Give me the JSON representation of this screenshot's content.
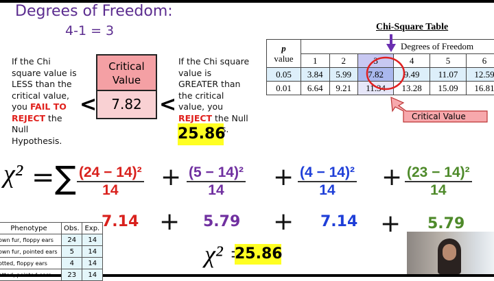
{
  "title": "Degrees of Freedom:",
  "df_calc": "4-1 = 3",
  "critical_box": {
    "label": "Critical Value",
    "value": "7.82"
  },
  "left_note": {
    "pre": "If the Chi square value is LESS than the critical value, you ",
    "emph": "FAIL TO REJECT",
    "post": " the Null Hypothesis."
  },
  "right_note": {
    "pre": "If the Chi square value is GREATER than the critical value, you ",
    "emph": "REJECT",
    "post": " the Null Hypothesis."
  },
  "less_than": "<",
  "chi_value": "25.86",
  "chi_table": {
    "title": "Chi-Square Table",
    "p_header": "p",
    "p_header2": "value",
    "df_header": "Degrees of Freedom",
    "df": [
      "1",
      "2",
      "3",
      "4",
      "5",
      "6"
    ],
    "rows": [
      {
        "p": "0.05",
        "values": [
          "3.84",
          "5.99",
          "7.82",
          "9.49",
          "11.07",
          "12.59"
        ]
      },
      {
        "p": "0.01",
        "values": [
          "6.64",
          "9.21",
          "11.34",
          "13.28",
          "15.09",
          "16.81"
        ]
      }
    ],
    "callout": "Critical Value"
  },
  "formula": {
    "lhs": "χ²",
    "eq": "=",
    "sum": "∑",
    "plus": "+",
    "terms": [
      {
        "num": "(24 − 14)²",
        "den": "14",
        "result": "7.14",
        "color": "#d9211d"
      },
      {
        "num": "(5 − 14)²",
        "den": "14",
        "result": "5.79",
        "color": "#7030a0"
      },
      {
        "num": "(4 − 14)²",
        "den": "14",
        "result": "7.14",
        "color": "#1f3fd8"
      },
      {
        "num": "(23 − 14)²",
        "den": "14",
        "result": "5.79",
        "color": "#4e8a2a"
      }
    ],
    "total_lhs": "χ² =",
    "total": "25.86"
  },
  "phenotype_table": {
    "headers": [
      "Phenotype",
      "Obs.",
      "Exp."
    ],
    "rows": [
      [
        "own fur, floppy ears",
        "24",
        "14"
      ],
      [
        "own fur, pointed ears",
        "5",
        "14"
      ],
      [
        "otted, floppy ears",
        "4",
        "14"
      ],
      [
        "otted, pointed ears",
        "23",
        "14"
      ]
    ]
  }
}
